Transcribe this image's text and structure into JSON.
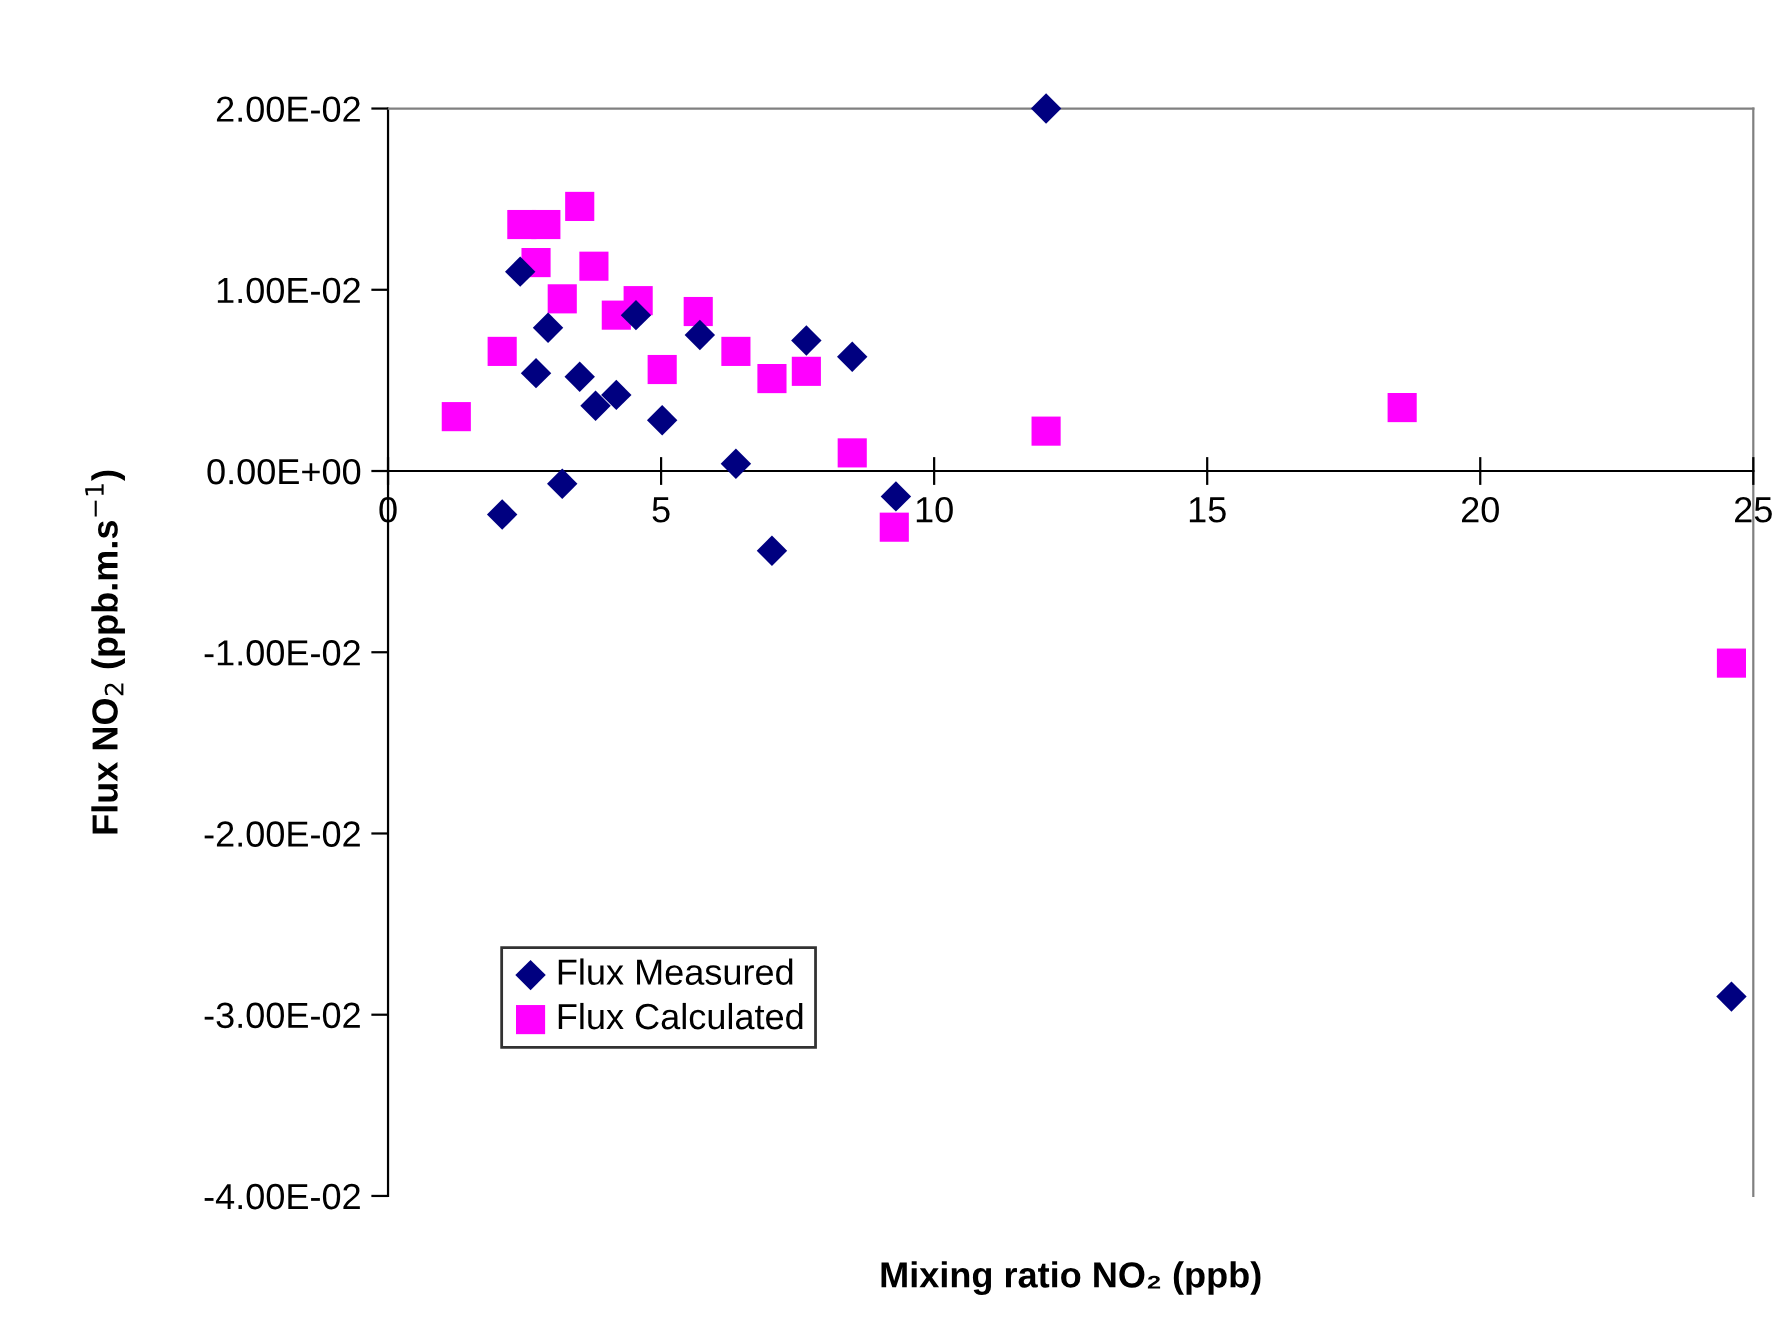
{
  "chart_data": {
    "type": "scatter",
    "xlabel": "Mixing ratio NO₂ (ppb)",
    "ylabel": "Flux NO$_{2}$ (ppb.m.s$^{−1}$)",
    "xlim": [
      0,
      25
    ],
    "xticks": [
      0,
      5,
      10,
      15,
      20,
      25
    ],
    "ylim": [
      -0.04,
      0.02
    ],
    "yticks": [
      {
        "value": -0.04,
        "label": "-4.00E-02"
      },
      {
        "value": -0.03,
        "label": "-3.00E-02"
      },
      {
        "value": -0.02,
        "label": "-2.00E-02"
      },
      {
        "value": -0.01,
        "label": "-1.00E-02"
      },
      {
        "value": 0,
        "label": "0.00E+00"
      },
      {
        "value": 0.01,
        "label": "1.00E-02"
      },
      {
        "value": 0.02,
        "label": "2.00E-02"
      }
    ],
    "grid": false,
    "legend": "bottom left",
    "series": [
      {
        "name": "Flux Measured",
        "color": "#000080",
        "marker": "diamond",
        "x": [
          2.42,
          2.71,
          2.93,
          3.51,
          3.8,
          4.18,
          4.54,
          5.02,
          5.71,
          6.37,
          7.03,
          7.66,
          8.5,
          9.3,
          3.19,
          2.09,
          12.05,
          24.6
        ],
        "values": [
          0.011,
          0.0054,
          0.0079,
          0.0052,
          0.0036,
          0.0042,
          0.0086,
          0.0028,
          0.0075,
          0.0004,
          -0.0044,
          0.0072,
          0.0063,
          -0.0014,
          -0.0007,
          -0.0024,
          0.02,
          -0.029
        ]
      },
      {
        "name": "Flux Calculated",
        "color": "#ff00ff",
        "marker": "square",
        "x": [
          1.25,
          2.09,
          2.45,
          2.89,
          2.71,
          3.51,
          3.77,
          3.19,
          4.18,
          4.58,
          5.02,
          5.68,
          6.37,
          7.03,
          7.66,
          8.5,
          9.27,
          12.05,
          18.57,
          24.6
        ],
        "values": [
          0.003,
          0.0066,
          0.0136,
          0.0136,
          0.0115,
          0.0146,
          0.0113,
          0.0095,
          0.0086,
          0.0094,
          0.0056,
          0.0088,
          0.0066,
          0.0051,
          0.0055,
          0.001,
          -0.0031,
          0.0022,
          0.0035,
          -0.0106
        ]
      }
    ]
  }
}
